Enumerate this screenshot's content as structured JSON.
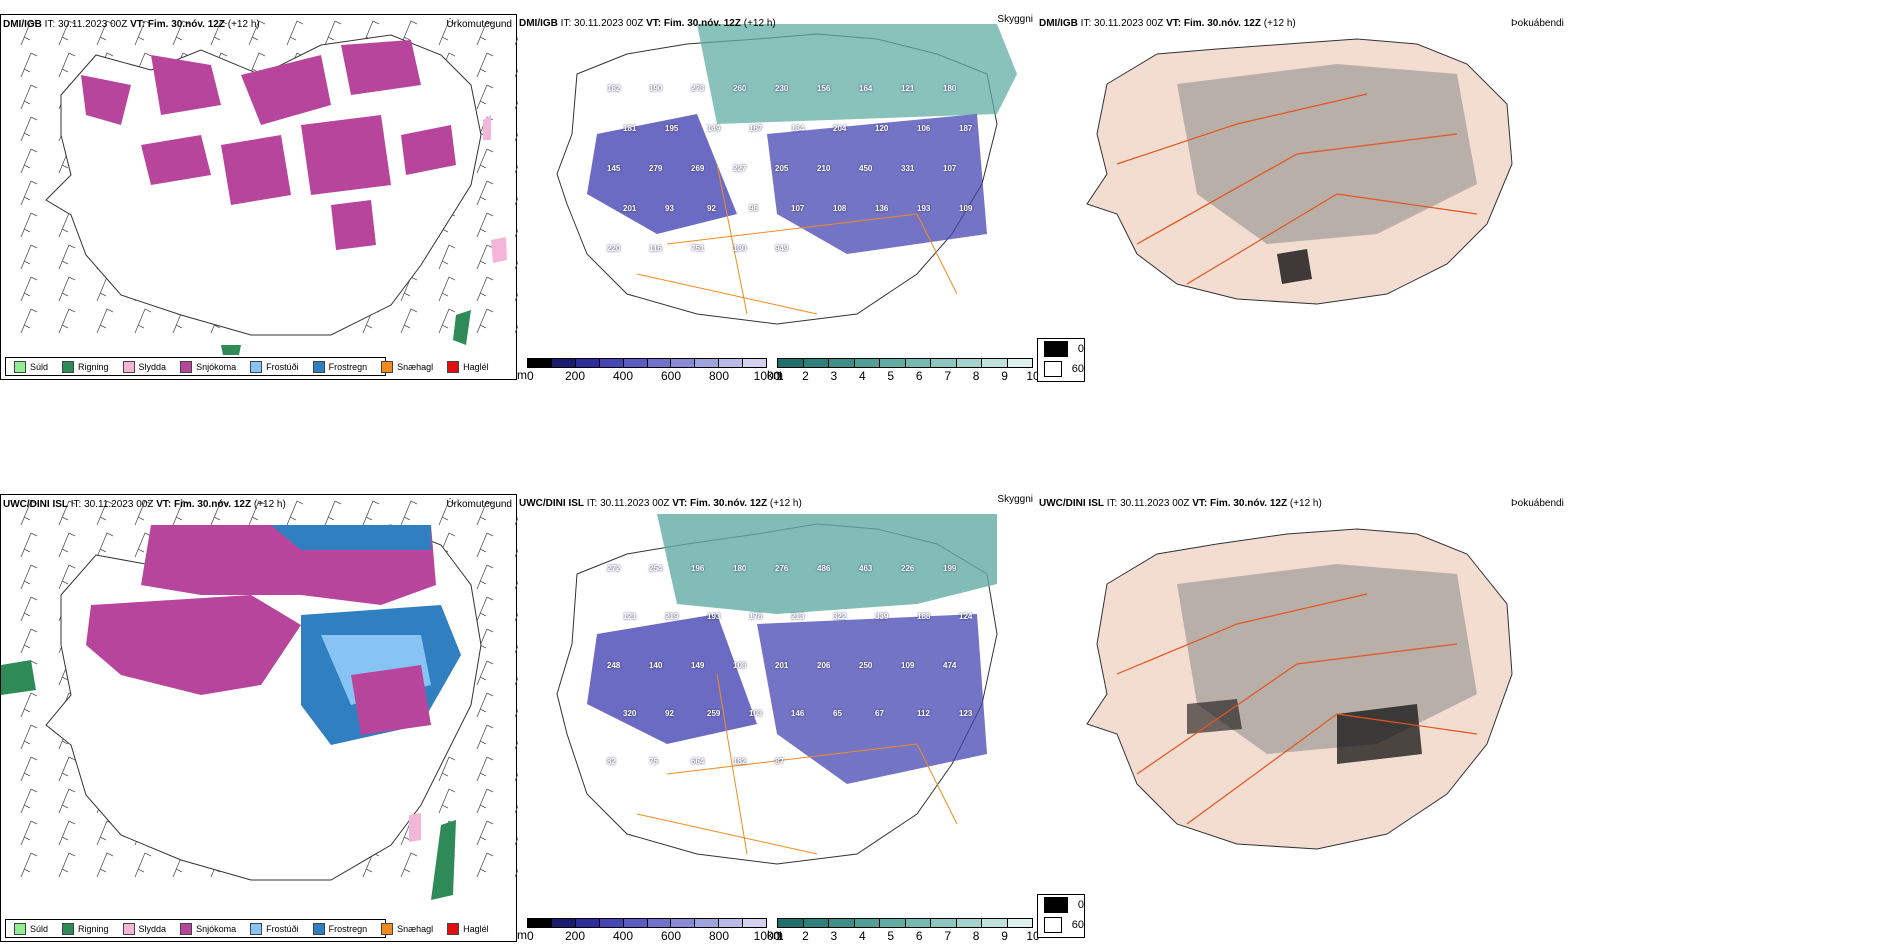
{
  "top": {
    "precip_header": {
      "model": "DMI/IGB",
      "it_label": "IT:",
      "it_value": "30.11.2023 00Z",
      "vt_label": "VT:",
      "vt_value": "Fim. 30.nóv. 12Z",
      "lead": "(+12 h)"
    },
    "precip_type_label": "Úrkomutegund",
    "cloud_header": {
      "model": "DMI/IGB",
      "it_label": "IT:",
      "it_value": "30.11.2023 00Z",
      "vt_label": "VT:",
      "vt_value": "Fim. 30.nóv. 12Z",
      "lead": "(+12 h)"
    },
    "cloud_type_label": "Skyggni",
    "fog_header": {
      "model": "DMI/IGB",
      "it_label": "IT:",
      "it_value": "30.11.2023 00Z",
      "vt_label": "VT:",
      "vt_value": "Fim. 30.nóv. 12Z",
      "lead": "(+12 h)"
    },
    "fog_type_label": "Þokuábendi",
    "cloud_labels": [
      "182",
      "190",
      "273",
      "260",
      "230",
      "156",
      "164",
      "121",
      "180",
      "181",
      "195",
      "149",
      "167",
      "134",
      "204",
      "120",
      "106",
      "187",
      "145",
      "279",
      "269",
      "227",
      "205",
      "210",
      "450",
      "331",
      "107",
      "201",
      "93",
      "92",
      "98",
      "107",
      "108",
      "136",
      "193",
      "109",
      "220",
      "116",
      "751",
      "130",
      "949"
    ]
  },
  "bottom": {
    "precip_header": {
      "model": "UWC/DINI ISL",
      "it_label": "IT:",
      "it_value": "30.11.2023 00Z",
      "vt_label": "VT:",
      "vt_value": "Fim. 30.nóv. 12Z",
      "lead": "(+12 h)"
    },
    "precip_type_label": "Úrkomutegund",
    "cloud_header": {
      "model": "UWC/DINI ISL",
      "it_label": "IT:",
      "it_value": "30.11.2023 00Z",
      "vt_label": "VT:",
      "vt_value": "Fim. 30.nóv. 12Z",
      "lead": "(+12 h)"
    },
    "cloud_type_label": "Skyggni",
    "fog_header": {
      "model": "UWC/DINI ISL",
      "it_label": "IT:",
      "it_value": "30.11.2023 00Z",
      "vt_label": "VT:",
      "vt_value": "Fim. 30.nóv. 12Z",
      "lead": "(+12 h)"
    },
    "fog_type_label": "Þokuábendi",
    "cloud_labels": [
      "272",
      "254",
      "196",
      "180",
      "276",
      "486",
      "463",
      "226",
      "199",
      "121",
      "219",
      "193",
      "178",
      "213",
      "322",
      "339",
      "188",
      "124",
      "248",
      "140",
      "149",
      "108",
      "201",
      "206",
      "250",
      "109",
      "474",
      "320",
      "92",
      "259",
      "103",
      "146",
      "65",
      "67",
      "112",
      "123",
      "82",
      "75",
      "664",
      "182",
      "87"
    ]
  },
  "precip_legend": [
    {
      "label": "Súld",
      "color": "#90ee90"
    },
    {
      "label": "Rigning",
      "color": "#2e8b57"
    },
    {
      "label": "Slydda",
      "color": "#f4b6d8"
    },
    {
      "label": "Snjókoma",
      "color": "#b8459c"
    },
    {
      "label": "Frostúði",
      "color": "#87c3f5"
    },
    {
      "label": "Frostregn",
      "color": "#2f7fc1"
    },
    {
      "label": "Snæhagl",
      "color": "#f08c1e"
    },
    {
      "label": "Haglél",
      "color": "#e01010"
    }
  ],
  "cloud_base_bar": {
    "unit": "m",
    "ticks": [
      "0",
      "200",
      "400",
      "600",
      "800",
      "1000"
    ],
    "colors": [
      "#000000",
      "#1b1b6e",
      "#2d2d9a",
      "#4646b4",
      "#5c5cc0",
      "#7272c8",
      "#8a8ad2",
      "#a2a2dc",
      "#babae6",
      "#d2d2ef"
    ]
  },
  "visibility_bar": {
    "unit": "km",
    "ticks": [
      "1",
      "2",
      "3",
      "4",
      "5",
      "6",
      "7",
      "8",
      "9",
      "10"
    ],
    "colors": [
      "#1f6f6a",
      "#2f807a",
      "#3f8f88",
      "#509e96",
      "#62aca4",
      "#76b9b1",
      "#8cc6bf",
      "#a4d3cd",
      "#bee1dc",
      "#dbefec"
    ]
  },
  "fog_legend": [
    {
      "label": "0",
      "color": "#000000"
    },
    {
      "label": "60",
      "color": "#ffffff"
    }
  ]
}
